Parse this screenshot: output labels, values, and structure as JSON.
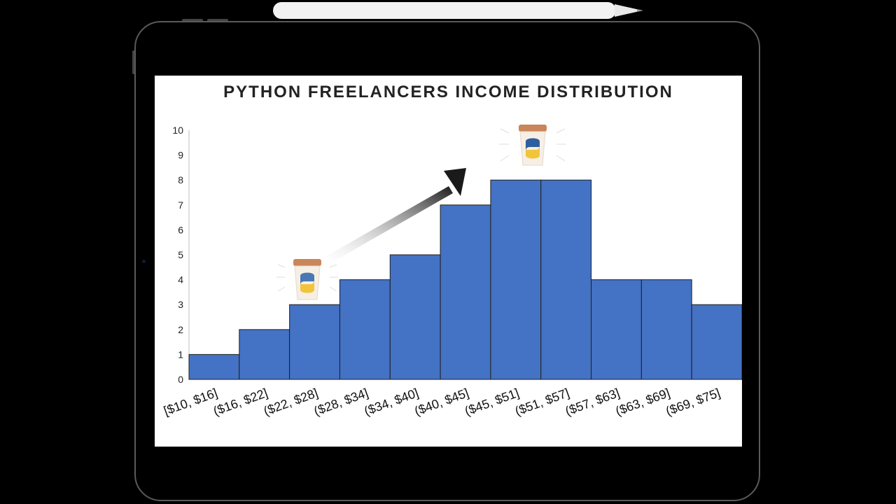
{
  "chart_data": {
    "type": "bar",
    "title": "PYTHON FREELANCERS INCOME DISTRIBUTION",
    "xlabel": "",
    "ylabel": "",
    "categories": [
      "[$10, $16]",
      "($16, $22]",
      "($22, $28]",
      "($28, $34]",
      "($34, $40]",
      "($40, $45]",
      "($45, $51]",
      "($51, $57]",
      "($57, $63]",
      "($63, $69]",
      "($69, $75]"
    ],
    "values": [
      1,
      2,
      3,
      4,
      5,
      7,
      8,
      8,
      4,
      4,
      3
    ],
    "yticks": [
      "0",
      "1",
      "2",
      "3",
      "4",
      "5",
      "6",
      "7",
      "8",
      "9",
      "10"
    ],
    "ylim": [
      0,
      10
    ],
    "grid": false,
    "bar_color": "#4472C4",
    "bar_edge_color": "#1f1f1f"
  },
  "decorations": {
    "arrow_icon": "trend-up-arrow-icon",
    "mascot_icon": "python-coffee-cup-icon"
  }
}
